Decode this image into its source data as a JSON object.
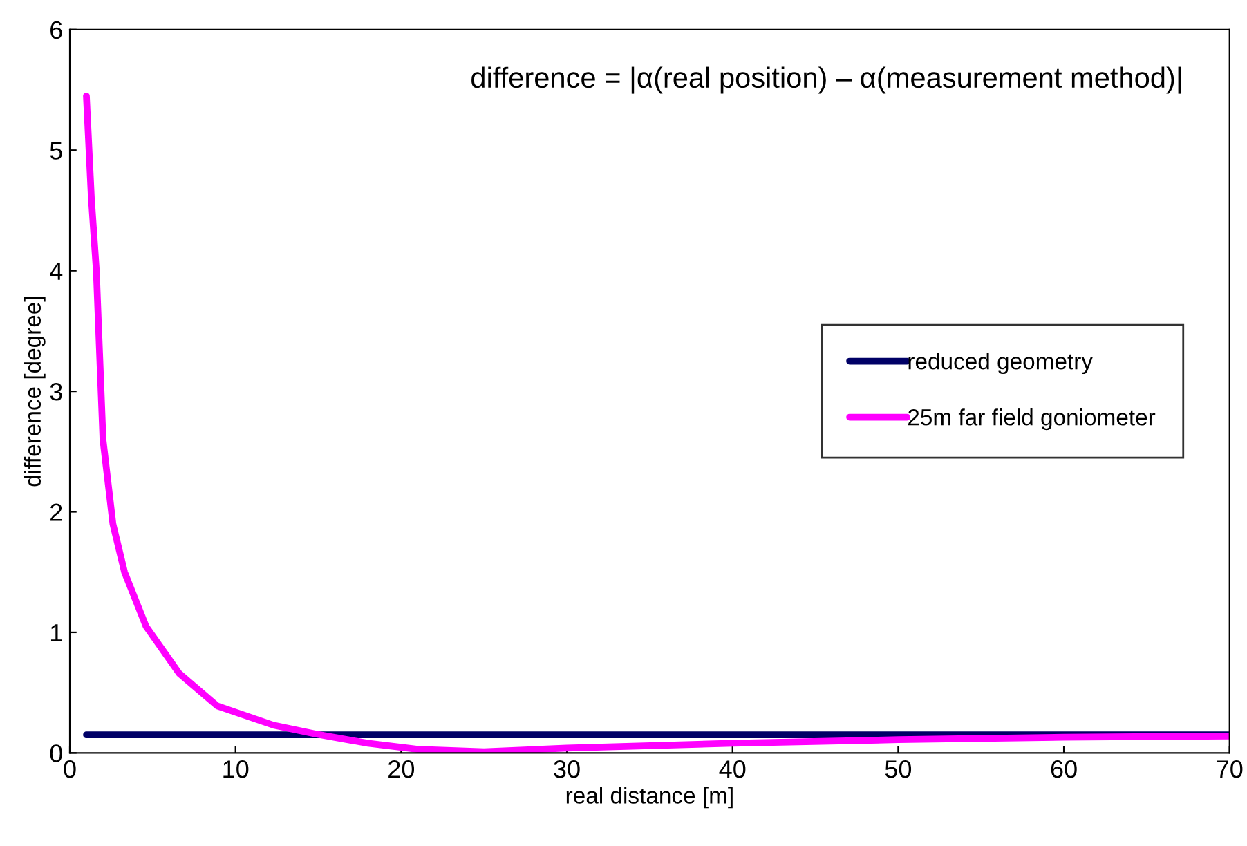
{
  "chart_data": {
    "type": "line",
    "xlabel": "real distance [m]",
    "ylabel": "difference [degree]",
    "annotations": [
      "difference = |α(real position) – α(measurement method)|"
    ],
    "xlim": [
      0,
      70
    ],
    "ylim": [
      0,
      6
    ],
    "xticks": [
      0,
      10,
      20,
      30,
      40,
      50,
      60,
      70
    ],
    "yticks": [
      0,
      1,
      2,
      3,
      4,
      5,
      6
    ],
    "grid": false,
    "legend": "right",
    "marker": "none",
    "line_style": "solid",
    "series": [
      {
        "name": "reduced geometry",
        "color": "#000066",
        "x": [
          1,
          10,
          20,
          30,
          40,
          50,
          60,
          70
        ],
        "values": [
          0.15,
          0.15,
          0.15,
          0.15,
          0.15,
          0.15,
          0.15,
          0.15
        ]
      },
      {
        "name": "25m far field goniometer",
        "color": "#ff00ff",
        "x": [
          1,
          1.3,
          1.6,
          2,
          2.6,
          3.3,
          4.6,
          6.6,
          8.9,
          12.3,
          14.9,
          18,
          21,
          25,
          30,
          40,
          50,
          60,
          70
        ],
        "values": [
          5.45,
          4.6,
          4.0,
          2.6,
          1.9,
          1.5,
          1.05,
          0.66,
          0.39,
          0.23,
          0.155,
          0.08,
          0.03,
          0.01,
          0.04,
          0.08,
          0.11,
          0.13,
          0.14
        ]
      }
    ]
  }
}
